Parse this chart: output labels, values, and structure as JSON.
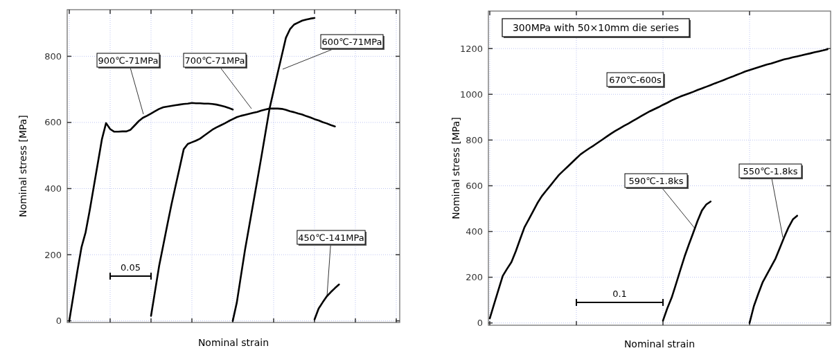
{
  "chart_data": [
    {
      "type": "line",
      "xlabel": "Nominal strain",
      "ylabel": "Nominal stress [MPa]",
      "ylim": [
        -5,
        941
      ],
      "yticks": [
        0,
        200,
        400,
        600,
        800
      ],
      "grid": true,
      "tick_labels": "y",
      "marker": "none",
      "line_style": "solid",
      "categories": [
        null,
        null,
        null,
        null,
        null,
        null,
        null,
        null,
        null,
        null,
        null,
        null,
        null,
        null,
        null,
        null,
        null,
        null,
        null,
        null,
        null,
        null,
        null,
        null,
        null,
        null,
        null,
        null,
        null,
        null,
        null,
        null,
        null,
        null,
        null,
        null,
        null,
        null,
        null,
        null,
        null,
        null,
        null,
        null,
        null,
        null,
        null,
        null,
        null,
        null,
        null,
        null,
        null,
        null,
        null,
        null,
        null,
        null,
        null,
        null,
        null,
        null,
        null,
        null,
        null,
        null,
        null,
        null,
        null,
        null,
        null,
        null,
        null,
        null,
        null,
        null,
        null,
        null,
        null,
        null,
        null
      ],
      "series": [
        {
          "color": "#000000",
          "values": [
            0,
            76,
            152,
            223,
            268,
            334,
            406,
            478,
            550,
            598,
            580,
            572,
            572,
            573,
            573,
            578,
            591,
            604,
            614,
            620,
            627,
            634,
            641,
            646,
            648,
            650,
            652,
            654,
            656,
            657,
            659,
            658,
            658,
            657,
            657,
            656,
            654,
            651,
            648,
            644,
            639,
            null,
            null,
            null,
            null,
            null,
            null,
            null,
            null,
            null,
            null,
            null,
            null,
            null,
            null,
            null,
            null,
            null,
            null,
            null,
            null,
            null,
            null,
            null,
            null,
            null,
            null,
            null,
            null,
            null,
            null,
            null,
            null,
            null,
            null,
            null,
            null,
            null,
            null,
            null,
            null
          ]
        },
        {
          "color": "#000000",
          "values": [
            null,
            null,
            null,
            null,
            null,
            null,
            null,
            null,
            null,
            null,
            null,
            null,
            null,
            null,
            null,
            null,
            null,
            null,
            null,
            null,
            15,
            91,
            167,
            229,
            291,
            352,
            408,
            463,
            519,
            535,
            540,
            545,
            551,
            560,
            569,
            578,
            585,
            591,
            597,
            604,
            610,
            616,
            620,
            623,
            626,
            629,
            632,
            636,
            639,
            642,
            642,
            642,
            641,
            638,
            634,
            631,
            627,
            624,
            619,
            615,
            610,
            606,
            601,
            597,
            592,
            588,
            null,
            null,
            null,
            null,
            null,
            null,
            null,
            null,
            null,
            null,
            null,
            null,
            null,
            null,
            null
          ]
        },
        {
          "color": "#000000",
          "values": [
            null,
            null,
            null,
            null,
            null,
            null,
            null,
            null,
            null,
            null,
            null,
            null,
            null,
            null,
            null,
            null,
            null,
            null,
            null,
            null,
            null,
            null,
            null,
            null,
            null,
            null,
            null,
            null,
            null,
            null,
            null,
            null,
            null,
            null,
            null,
            null,
            null,
            null,
            null,
            null,
            0,
            56,
            136,
            215,
            285,
            355,
            425,
            496,
            569,
            642,
            696,
            750,
            803,
            856,
            882,
            896,
            902,
            908,
            911,
            914,
            916,
            null,
            null,
            null,
            null,
            null,
            null,
            null,
            null,
            null,
            null,
            null,
            null,
            null,
            null,
            null,
            null,
            null,
            null,
            null,
            null
          ]
        },
        {
          "color": "#000000",
          "values": [
            null,
            null,
            null,
            null,
            null,
            null,
            null,
            null,
            null,
            null,
            null,
            null,
            null,
            null,
            null,
            null,
            null,
            null,
            null,
            null,
            null,
            null,
            null,
            null,
            null,
            null,
            null,
            null,
            null,
            null,
            null,
            null,
            null,
            null,
            null,
            null,
            null,
            null,
            null,
            null,
            null,
            null,
            null,
            null,
            null,
            null,
            null,
            null,
            null,
            null,
            null,
            null,
            null,
            null,
            null,
            null,
            null,
            null,
            null,
            null,
            4,
            37,
            56,
            74,
            87,
            99,
            110,
            null,
            null,
            null,
            null,
            null,
            null,
            null,
            null,
            null,
            null,
            null,
            null,
            null,
            null
          ]
        }
      ],
      "annotations": [
        "900℃-71MPa",
        "700℃-71MPa",
        "600℃-71MPa",
        "450℃-141MPa",
        "0.05"
      ]
    },
    {
      "type": "line",
      "title": "300MPa with 50×10mm die series",
      "xlabel": "Nominal strain",
      "ylabel": "Nominal stress [MPa]",
      "ylim": [
        -10,
        1364
      ],
      "yticks": [
        0,
        200,
        400,
        600,
        800,
        1000,
        1200
      ],
      "grid": true,
      "tick_labels": "y",
      "marker": "none",
      "line_style": "solid",
      "categories": [
        null,
        null,
        null,
        null,
        null,
        null,
        null,
        null,
        null,
        null,
        null,
        null,
        null,
        null,
        null,
        null,
        null,
        null,
        null,
        null,
        null,
        null,
        null,
        null,
        null,
        null,
        null,
        null,
        null,
        null,
        null,
        null,
        null,
        null,
        null,
        null,
        null,
        null,
        null,
        null,
        null,
        null,
        null,
        null,
        null,
        null,
        null,
        null,
        null,
        null,
        null,
        null,
        null,
        null,
        null,
        null,
        null,
        null,
        null,
        null,
        null,
        null,
        null,
        null,
        null,
        null,
        null,
        null,
        null,
        null,
        null,
        null,
        null,
        null,
        null,
        null,
        null,
        null,
        null
      ],
      "series": [
        {
          "color": "#000000",
          "values": [
            20,
            83,
            145,
            206,
            237,
            266,
            313,
            366,
            418,
            453,
            488,
            524,
            554,
            578,
            601,
            625,
            648,
            666,
            684,
            702,
            720,
            738,
            751,
            764,
            776,
            789,
            802,
            815,
            828,
            840,
            851,
            862,
            872,
            883,
            894,
            905,
            916,
            926,
            935,
            944,
            954,
            963,
            973,
            982,
            990,
            997,
            1004,
            1011,
            1019,
            1026,
            1033,
            1040,
            1048,
            1055,
            1062,
            1070,
            1077,
            1085,
            1092,
            1100,
            1106,
            1112,
            1118,
            1124,
            1130,
            1135,
            1141,
            1147,
            1153,
            1157,
            1162,
            1166,
            1170,
            1175,
            1179,
            1184,
            1188,
            1192,
            1197
          ]
        },
        {
          "color": "#000000",
          "values": [
            null,
            null,
            null,
            null,
            null,
            null,
            null,
            null,
            null,
            null,
            null,
            null,
            null,
            null,
            null,
            null,
            null,
            null,
            null,
            null,
            null,
            null,
            null,
            null,
            null,
            null,
            null,
            null,
            null,
            null,
            null,
            null,
            null,
            null,
            null,
            null,
            null,
            null,
            null,
            null,
            10,
            64,
            110,
            170,
            231,
            291,
            344,
            395,
            447,
            492,
            518,
            531,
            null,
            null,
            null,
            null,
            null,
            null,
            null,
            null,
            null,
            null,
            null,
            null,
            null,
            null,
            null,
            null,
            null,
            null,
            null,
            null,
            null,
            null,
            null,
            null,
            null,
            null,
            null
          ]
        },
        {
          "color": "#000000",
          "values": [
            null,
            null,
            null,
            null,
            null,
            null,
            null,
            null,
            null,
            null,
            null,
            null,
            null,
            null,
            null,
            null,
            null,
            null,
            null,
            null,
            null,
            null,
            null,
            null,
            null,
            null,
            null,
            null,
            null,
            null,
            null,
            null,
            null,
            null,
            null,
            null,
            null,
            null,
            null,
            null,
            null,
            null,
            null,
            null,
            null,
            null,
            null,
            null,
            null,
            null,
            null,
            null,
            null,
            null,
            null,
            null,
            null,
            null,
            null,
            null,
            0,
            74,
            127,
            177,
            212,
            247,
            282,
            328,
            375,
            418,
            453,
            469,
            null,
            null,
            null,
            null,
            null,
            null,
            null
          ]
        }
      ],
      "annotations": [
        "670℃-600s",
        "590℃-1.8ks",
        "550℃-1.8ks",
        "0.1"
      ]
    }
  ]
}
